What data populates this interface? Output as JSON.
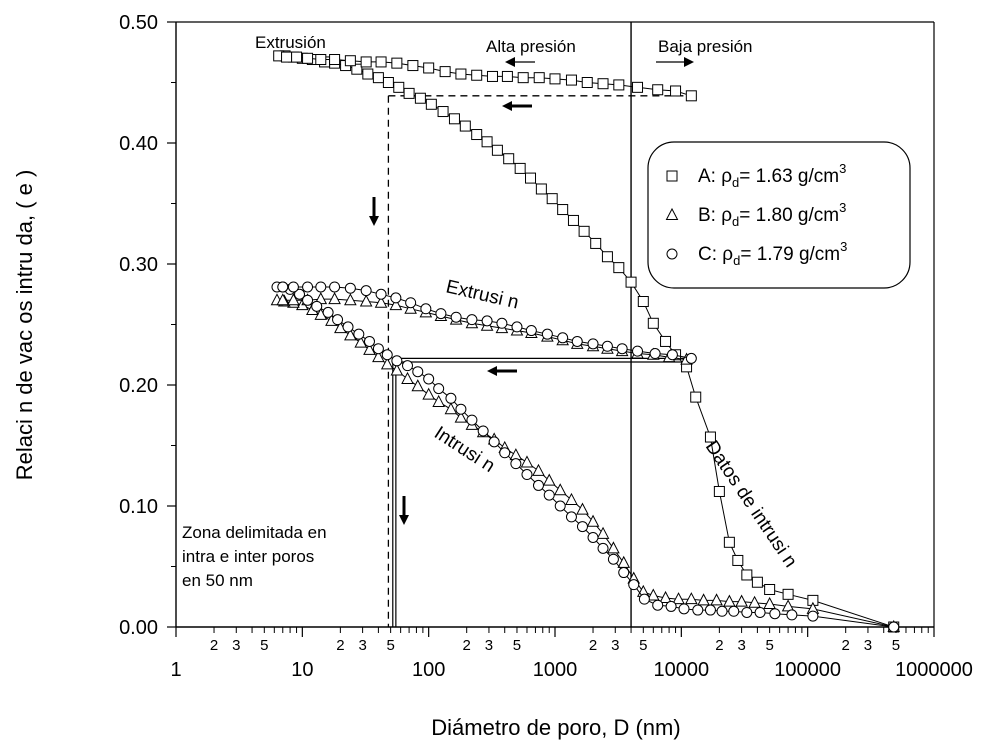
{
  "chart_data": {
    "type": "scatter",
    "x_scale": "log",
    "xlim": [
      1,
      1000000
    ],
    "ylim": [
      0,
      0.5
    ],
    "xlabel": "Diámetro de poro, D (nm)",
    "ylabel": "Relaci n de vac os intru da, ( e )",
    "x_tick_labels": [
      "1",
      "10",
      "100",
      "1000",
      "10000",
      "100000",
      "1000000"
    ],
    "x_minor_labels": [
      "2",
      "3",
      "5"
    ],
    "y_tick_labels": [
      "0.00",
      "0.10",
      "0.20",
      "0.30",
      "0.40",
      "0.50"
    ],
    "y_ticks": [
      0,
      0.1,
      0.2,
      0.3,
      0.4,
      0.5
    ],
    "legend_position": "top-right",
    "series": [
      {
        "label_prefix": "A: ρ",
        "label_sub": "d",
        "label_value": "= 1.63 g/cm",
        "label_sup": "3",
        "marker": "square",
        "intrusion": {
          "x": [
            480000,
            110000,
            70000,
            50000,
            40000,
            33000,
            28000,
            24000,
            20000,
            17000,
            13000,
            11000,
            9000,
            7500,
            6000,
            5000,
            4000,
            3200,
            2600,
            2100,
            1700,
            1400,
            1150,
            950,
            780,
            640,
            530,
            430,
            350,
            290,
            240,
            195,
            160,
            130,
            105,
            86,
            70,
            58,
            48,
            40,
            33,
            27,
            22,
            18,
            15,
            12,
            10,
            8.5,
            7.3,
            6.5
          ],
          "y": [
            0.0,
            0.022,
            0.027,
            0.031,
            0.037,
            0.043,
            0.055,
            0.07,
            0.112,
            0.157,
            0.19,
            0.215,
            0.225,
            0.236,
            0.251,
            0.269,
            0.285,
            0.297,
            0.306,
            0.317,
            0.327,
            0.336,
            0.345,
            0.354,
            0.362,
            0.371,
            0.379,
            0.387,
            0.394,
            0.401,
            0.407,
            0.414,
            0.42,
            0.426,
            0.432,
            0.437,
            0.441,
            0.446,
            0.45,
            0.454,
            0.457,
            0.461,
            0.464,
            0.466,
            0.467,
            0.469,
            0.47,
            0.471,
            0.472,
            0.472
          ]
        },
        "extrusion": {
          "x": [
            12000,
            9000,
            6500,
            4500,
            3200,
            2400,
            1800,
            1350,
            1000,
            750,
            560,
            420,
            320,
            240,
            180,
            135,
            100,
            75,
            56,
            42,
            32,
            24,
            18,
            14,
            11,
            9,
            7.5
          ],
          "y": [
            0.439,
            0.443,
            0.444,
            0.446,
            0.448,
            0.449,
            0.45,
            0.452,
            0.453,
            0.454,
            0.454,
            0.455,
            0.455,
            0.456,
            0.457,
            0.459,
            0.462,
            0.464,
            0.466,
            0.467,
            0.467,
            0.468,
            0.469,
            0.469,
            0.47,
            0.471,
            0.471
          ]
        }
      },
      {
        "label_prefix": "B: ρ",
        "label_sub": "d",
        "label_value": "= 1.80 g/cm",
        "label_sup": "3",
        "marker": "triangle",
        "intrusion": {
          "x": [
            480000,
            110000,
            70000,
            50000,
            38000,
            30000,
            24000,
            19000,
            15000,
            12000,
            9500,
            7500,
            6000,
            5000,
            4200,
            3500,
            2900,
            2400,
            2000,
            1650,
            1350,
            1100,
            900,
            740,
            600,
            490,
            400,
            330,
            270,
            220,
            180,
            150,
            120,
            100,
            82,
            68,
            56,
            47,
            40,
            34,
            29,
            24,
            20,
            17,
            14,
            12,
            10,
            8.5,
            7.2,
            6.3
          ],
          "y": [
            0.0,
            0.015,
            0.017,
            0.019,
            0.02,
            0.021,
            0.021,
            0.022,
            0.022,
            0.023,
            0.023,
            0.024,
            0.026,
            0.029,
            0.04,
            0.053,
            0.065,
            0.077,
            0.087,
            0.097,
            0.105,
            0.113,
            0.121,
            0.129,
            0.136,
            0.142,
            0.148,
            0.155,
            0.161,
            0.167,
            0.173,
            0.18,
            0.186,
            0.192,
            0.199,
            0.205,
            0.212,
            0.217,
            0.223,
            0.229,
            0.235,
            0.241,
            0.247,
            0.253,
            0.258,
            0.262,
            0.266,
            0.268,
            0.269,
            0.27
          ]
        },
        "extrusion": {
          "x": [
            11000,
            8000,
            6000,
            4500,
            3400,
            2600,
            2000,
            1500,
            1150,
            870,
            650,
            500,
            380,
            290,
            220,
            165,
            125,
            95,
            72,
            55,
            42,
            32,
            24,
            18,
            14,
            11,
            8.5,
            7
          ],
          "y": [
            0.221,
            0.223,
            0.225,
            0.226,
            0.228,
            0.23,
            0.232,
            0.234,
            0.237,
            0.24,
            0.243,
            0.245,
            0.247,
            0.249,
            0.251,
            0.254,
            0.257,
            0.26,
            0.263,
            0.266,
            0.268,
            0.269,
            0.27,
            0.271,
            0.271,
            0.27,
            0.27,
            0.27
          ]
        }
      },
      {
        "label_prefix": "C: ρ",
        "label_sub": "d",
        "label_value": "= 1.79 g/cm",
        "label_sup": "3",
        "marker": "circle",
        "intrusion": {
          "x": [
            480000,
            110000,
            75000,
            55000,
            42000,
            33000,
            26000,
            21000,
            17000,
            13500,
            10500,
            8300,
            6500,
            5100,
            4200,
            3500,
            2900,
            2400,
            2000,
            1650,
            1350,
            1100,
            900,
            740,
            600,
            490,
            400,
            330,
            270,
            220,
            180,
            150,
            120,
            100,
            82,
            68,
            56,
            47,
            40,
            34,
            28,
            23,
            19,
            16,
            13,
            11,
            9.5,
            8,
            7,
            6.3
          ],
          "y": [
            0.0,
            0.009,
            0.01,
            0.011,
            0.012,
            0.012,
            0.013,
            0.013,
            0.014,
            0.014,
            0.015,
            0.017,
            0.018,
            0.023,
            0.035,
            0.045,
            0.056,
            0.065,
            0.074,
            0.083,
            0.091,
            0.1,
            0.109,
            0.117,
            0.126,
            0.135,
            0.144,
            0.153,
            0.162,
            0.171,
            0.18,
            0.189,
            0.197,
            0.205,
            0.211,
            0.216,
            0.22,
            0.225,
            0.23,
            0.236,
            0.242,
            0.248,
            0.254,
            0.26,
            0.265,
            0.27,
            0.275,
            0.279,
            0.281,
            0.281
          ]
        },
        "extrusion": {
          "x": [
            12000,
            8500,
            6200,
            4500,
            3400,
            2600,
            2000,
            1500,
            1150,
            870,
            650,
            500,
            380,
            290,
            220,
            165,
            125,
            95,
            72,
            55,
            42,
            32,
            24,
            18,
            14,
            11,
            8.5,
            7
          ],
          "y": [
            0.222,
            0.225,
            0.226,
            0.228,
            0.23,
            0.232,
            0.234,
            0.236,
            0.239,
            0.242,
            0.245,
            0.248,
            0.251,
            0.253,
            0.254,
            0.256,
            0.259,
            0.263,
            0.268,
            0.272,
            0.275,
            0.278,
            0.28,
            0.281,
            0.281,
            0.281,
            0.281,
            0.281
          ]
        }
      }
    ],
    "annotations": {
      "extrusion_top": "Extrusión",
      "alta_presion": "Alta presión",
      "baja_presion": "Baja presión",
      "extrusion_mid": "Extrusi  n",
      "intrusion_mid": "Intrusi  n",
      "datos_intrusion": "Datos de intrusi  n",
      "zona_line1": "Zona delimitada en",
      "zona_line2": "intra e inter poros",
      "zona_line3": "en 50 nm"
    },
    "reference_lines": {
      "vertical_separator_x": 4000,
      "dashed_vertical_x": 48,
      "dashed_horizontal_y": 0.439,
      "double_vertical_x": [
        52,
        55
      ],
      "double_horizontal_y": [
        0.219,
        0.222
      ]
    }
  }
}
